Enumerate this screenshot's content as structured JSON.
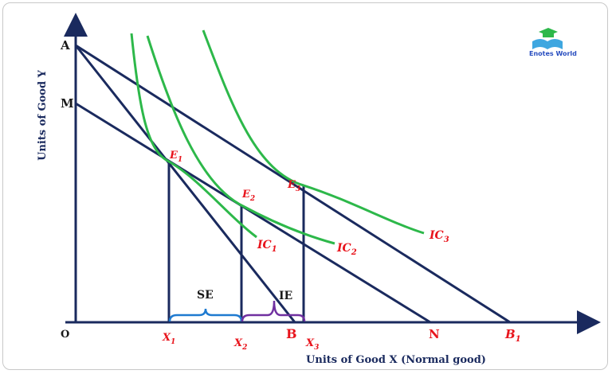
{
  "points": {
    "A": "A",
    "M": "M",
    "O": "O",
    "B": "B",
    "N": "N",
    "B1": "B",
    "B1_sub": "1"
  },
  "x_labels": [
    {
      "t": "X",
      "s": "1"
    },
    {
      "t": "X",
      "s": "2"
    },
    {
      "t": "X",
      "s": "3"
    }
  ],
  "equilibria": [
    {
      "t": "E",
      "s": "1"
    },
    {
      "t": "E",
      "s": "2"
    },
    {
      "t": "E",
      "s": "3"
    }
  ],
  "curves": [
    {
      "t": "IC",
      "s": "1"
    },
    {
      "t": "IC",
      "s": "2"
    },
    {
      "t": "IC",
      "s": "3"
    }
  ],
  "effects": {
    "se": "SE",
    "ie": "IE"
  },
  "axes": {
    "y_label": "Units of Good Y",
    "x_label": "Units of Good X (Normal good)"
  },
  "logo": {
    "text": "Enotes World"
  },
  "colors": {
    "lines": "#1a2a5e",
    "curves": "#2db84a",
    "labels": "#e8141c",
    "se_brace": "#1e7ad0",
    "ie_brace": "#7030a0"
  }
}
